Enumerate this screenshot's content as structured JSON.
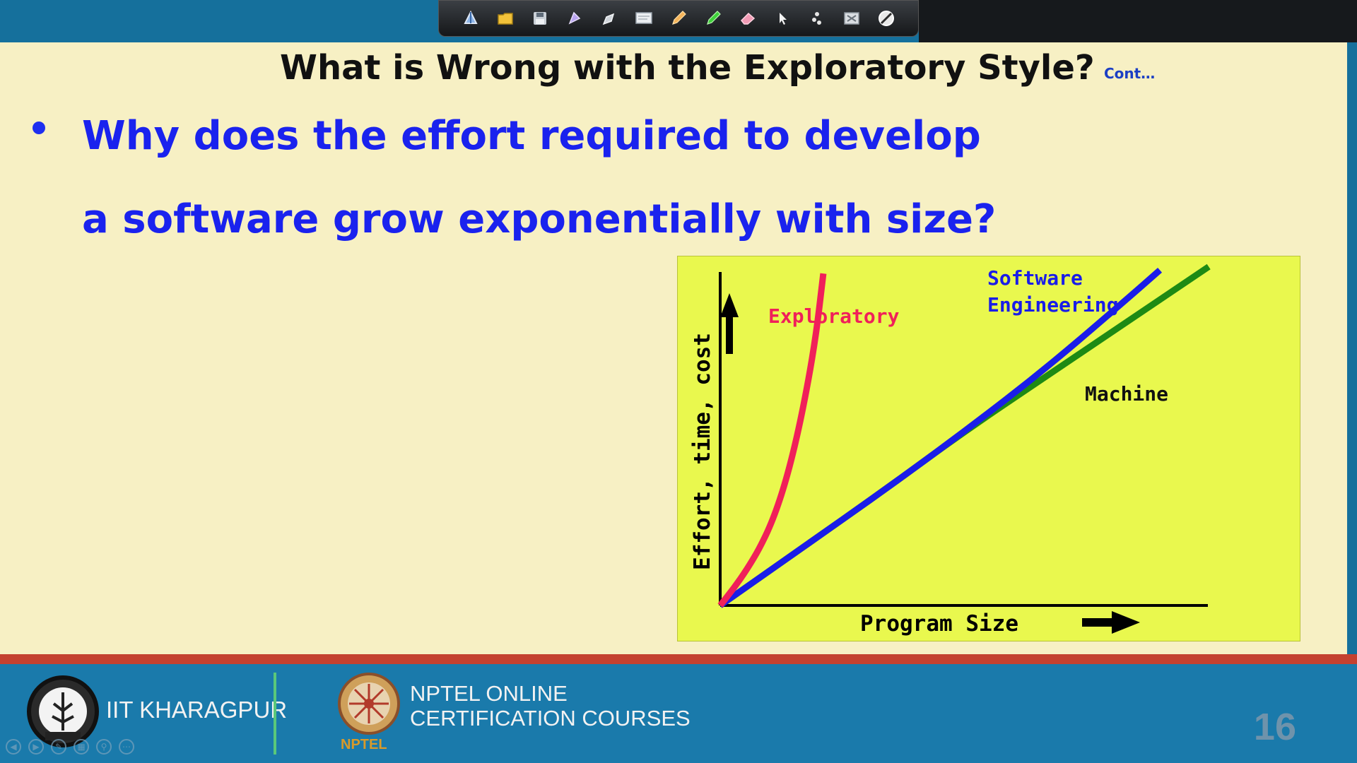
{
  "slide": {
    "title": "What is Wrong with the Exploratory Style?",
    "title_suffix": "Cont…",
    "bullet_line1": "Why does the effort required to develop",
    "bullet_line2": "a software grow exponentially with size?",
    "page_number": "16"
  },
  "footer": {
    "institute": "IIT KHARAGPUR",
    "course_line1": "NPTEL ONLINE",
    "course_line2": "CERTIFICATION COURSES",
    "nptel_label": "NPTEL"
  },
  "toolbar": {
    "icons": [
      "pin-icon",
      "folder-icon",
      "save-icon",
      "highlighter-icon",
      "pen-icon",
      "whiteboard-icon",
      "pencil-icon",
      "marker-icon",
      "eraser-icon",
      "pointer-icon",
      "laser-icon",
      "clear-icon",
      "stop-icon"
    ]
  },
  "chart_data": {
    "type": "line",
    "title": "",
    "xlabel": "Program Size",
    "ylabel": "Effort, time, cost",
    "grid": false,
    "legend": "inline-labels",
    "background": "#e9f84e",
    "series": [
      {
        "name": "Exploratory",
        "color": "#f0205a",
        "x": [
          0,
          5,
          10,
          15,
          20,
          25,
          30,
          35,
          38
        ],
        "y": [
          0,
          15,
          32,
          52,
          78,
          115,
          165,
          230,
          290
        ]
      },
      {
        "name": "Software Engineering",
        "color": "#1a1de8",
        "x": [
          0,
          30,
          60,
          90,
          120,
          150,
          162
        ],
        "y": [
          0,
          50,
          100,
          152,
          207,
          268,
          293
        ]
      },
      {
        "name": "Machine",
        "color": "#1e8a14",
        "x": [
          0,
          30,
          60,
          90,
          120,
          150,
          180
        ],
        "y": [
          0,
          50,
          100,
          152,
          200,
          248,
          296
        ]
      }
    ]
  }
}
